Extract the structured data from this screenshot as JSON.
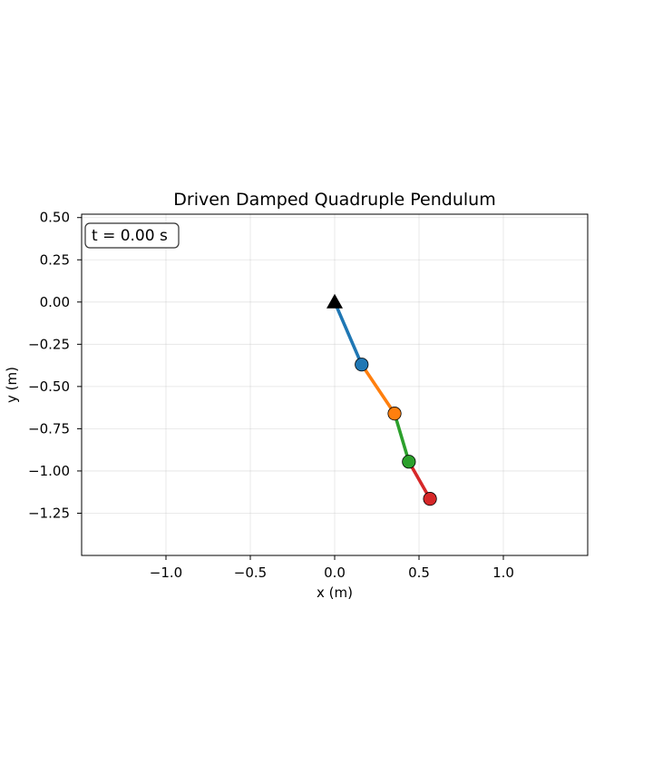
{
  "chart_data": {
    "type": "scatter",
    "title": "Driven Damped Quadruple Pendulum",
    "xlabel": "x (m)",
    "ylabel": "y (m)",
    "xlim": [
      -1.5,
      1.5
    ],
    "ylim": [
      -1.5,
      0.52
    ],
    "grid": true,
    "x_ticks": [
      -1.0,
      -0.5,
      0.0,
      0.5,
      1.0
    ],
    "x_tick_labels": [
      "−1.0",
      "−0.5",
      "0.0",
      "0.5",
      "1.0"
    ],
    "y_ticks": [
      0.5,
      0.25,
      0.0,
      -0.25,
      -0.5,
      -0.75,
      -1.0,
      -1.25
    ],
    "y_tick_labels": [
      "0.50",
      "0.25",
      "0.00",
      "−0.25",
      "−0.50",
      "−0.75",
      "−1.00",
      "−1.25"
    ],
    "time_label": "t = 0.00 s",
    "pivot": {
      "x": 0.0,
      "y": 0.0,
      "color": "#000000",
      "marker": "triangle"
    },
    "segments": [
      {
        "x": [
          0.0,
          0.16
        ],
        "y": [
          0.0,
          -0.37
        ],
        "color": "#1f77b4"
      },
      {
        "x": [
          0.16,
          0.355
        ],
        "y": [
          -0.37,
          -0.66
        ],
        "color": "#ff7f0e"
      },
      {
        "x": [
          0.355,
          0.44
        ],
        "y": [
          -0.66,
          -0.945
        ],
        "color": "#2ca02c"
      },
      {
        "x": [
          0.44,
          0.565
        ],
        "y": [
          -0.945,
          -1.165
        ],
        "color": "#d62728"
      }
    ],
    "bobs": [
      {
        "x": 0.16,
        "y": -0.37,
        "color": "#1f77b4"
      },
      {
        "x": 0.355,
        "y": -0.66,
        "color": "#ff7f0e"
      },
      {
        "x": 0.44,
        "y": -0.945,
        "color": "#2ca02c"
      },
      {
        "x": 0.565,
        "y": -1.165,
        "color": "#d62728"
      }
    ]
  }
}
